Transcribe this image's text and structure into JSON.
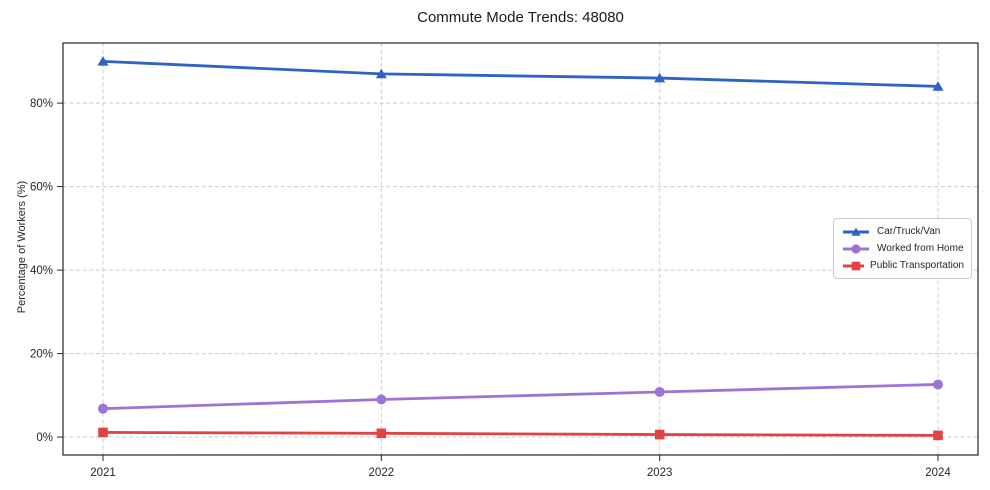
{
  "title": "Commute Mode Trends: 48080",
  "chart_data": {
    "type": "line",
    "title": "Commute Mode Trends: 48080",
    "xlabel": "",
    "ylabel": "Percentage of Workers (%)",
    "categories": [
      "2021",
      "2022",
      "2023",
      "2024"
    ],
    "series": [
      {
        "name": "Car/Truck/Van",
        "marker": "triangle",
        "color": "#2e63c4",
        "values": [
          90,
          87,
          86,
          84
        ]
      },
      {
        "name": "Worked from Home",
        "marker": "circle",
        "color": "#9d74d6",
        "values": [
          6.8,
          9.0,
          10.8,
          12.6
        ]
      },
      {
        "name": "Public Transportation",
        "marker": "square",
        "color": "#e04343",
        "values": [
          1.1,
          0.9,
          0.6,
          0.4
        ]
      }
    ],
    "yticks": [
      0,
      20,
      40,
      60,
      80
    ],
    "ytick_labels": [
      "0%",
      "20%",
      "40%",
      "60%",
      "80%"
    ],
    "ylim": [
      -4.3,
      94.4
    ],
    "grid": true,
    "grid_style": "dashed",
    "legend_position": "center-right",
    "colors": {
      "grid": "#cccccc",
      "axis": "#262626",
      "tick_text": "#262626",
      "background": "#ffffff"
    }
  }
}
